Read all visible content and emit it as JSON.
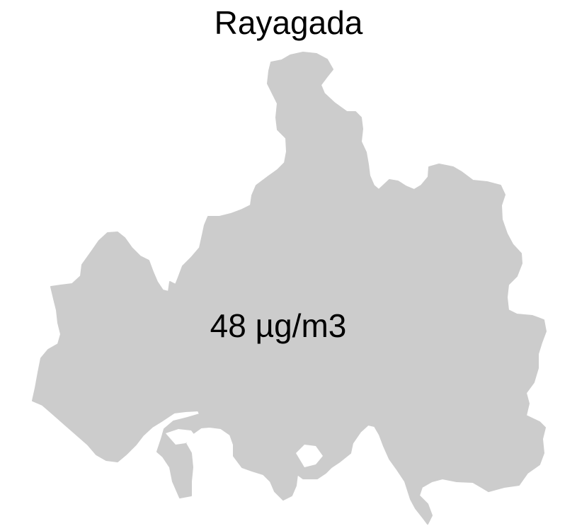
{
  "map": {
    "title": "Rayagada",
    "value_label": "48 µg/m3",
    "region_fill": "#cccccc",
    "background": "#ffffff"
  }
}
